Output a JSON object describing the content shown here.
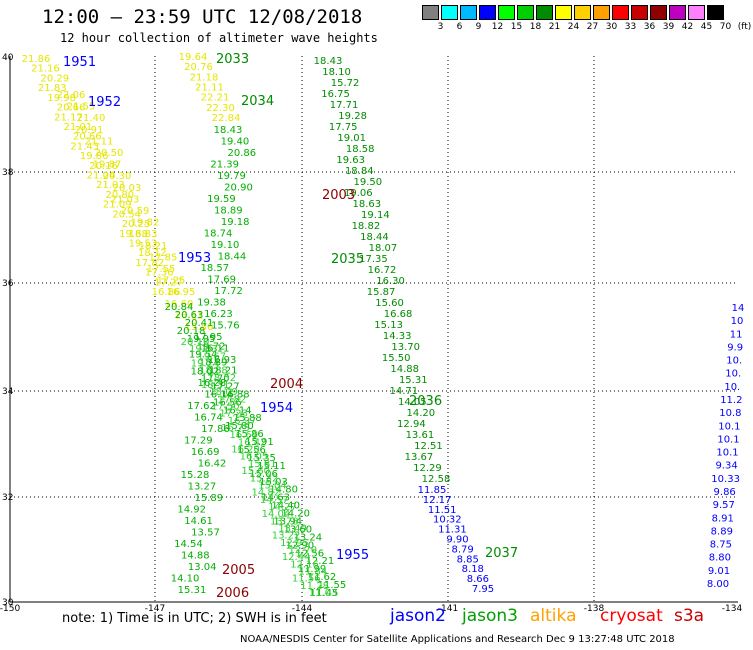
{
  "title": "12:00 – 23:59 UTC 12/08/2018",
  "subtitle": "12 hour collection of altimeter wave heights",
  "scale": {
    "labels": [
      "3",
      "6",
      "9",
      "12",
      "15",
      "18",
      "21",
      "24",
      "27",
      "30",
      "33",
      "36",
      "39",
      "42",
      "45",
      "70",
      "(ft)"
    ],
    "colors": [
      "#808080",
      "#00ffff",
      "#00b8ff",
      "#0000ff",
      "#00ff00",
      "#00d000",
      "#008c00",
      "#ffff00",
      "#ffd000",
      "#ffa000",
      "#ff0000",
      "#c80000",
      "#900000",
      "#c000c0",
      "#ff80ff",
      "#000000"
    ]
  },
  "axes": {
    "lat_labels": [
      "40",
      "38",
      "36",
      "34",
      "32",
      "30"
    ],
    "lon_labels": [
      "-150",
      "-147",
      "-144",
      "-141",
      "-138",
      "-134"
    ]
  },
  "tracks": [
    {
      "id": "1951",
      "color": "#0000ff",
      "values": [
        "21.86",
        "21.16",
        "20.29",
        "21.83",
        "19.98",
        "20.66",
        "21.17",
        "21.01",
        "20.66",
        "21.43",
        "19.86",
        "20.16",
        "21.04",
        "21.03",
        "20.80",
        "21.09",
        "20.54",
        "20.25",
        "19.68",
        "19.53",
        "18.12",
        "17.82",
        "17.36",
        "17.27",
        "16.86"
      ]
    },
    {
      "id": "1952",
      "color": "#0000ff",
      "values": [
        "22.06",
        "21.55",
        "21.40",
        "20.91",
        "21.11",
        "20.50",
        "19.87",
        "20.30",
        "20.03",
        "21.03",
        "20.59",
        "19.82",
        "18.83",
        "18.21",
        "17.85",
        "17.55",
        "17.25",
        "16.95",
        "16.60",
        "16.11",
        "15.86"
      ]
    },
    {
      "id": "1953",
      "color": "#0000ff",
      "values": [
        "20.84",
        "20.63",
        "20.41",
        "20.18",
        "19.95",
        "19.72",
        "19.54",
        "18.89",
        "18.21",
        "17.70",
        "17.27",
        "16.88",
        "16.56",
        "16.14",
        "15.88",
        "15.80",
        "15.86",
        "15.91",
        "15.56",
        "15.35",
        "15.11",
        "15.06",
        "15.03",
        "14.80",
        "14.63",
        "14.40",
        "14.20",
        "13.94",
        "13.60",
        "13.24",
        "12.90",
        "12.56",
        "12.21",
        "11.99",
        "11.62",
        "11.55",
        "11.45"
      ]
    },
    {
      "id": "1954",
      "color": "#0000ff",
      "values": [
        "20.10",
        "19.83",
        "19.67",
        "19.24",
        "18.88",
        "18.52",
        "18.31",
        "18.09",
        "17.82",
        "17.50",
        "17.23",
        "16.97",
        "16.75",
        "16.69",
        "16.42",
        "16.20",
        "16.05",
        "15.81",
        "15.60",
        "15.32",
        "15.04",
        "14.82",
        "14.57",
        "14.27",
        "14.04",
        "13.78",
        "13.49",
        "13.22",
        "12.95",
        "12.70",
        "12.44",
        "12.16",
        "11.84",
        "11.56",
        "11.28",
        "11.03"
      ]
    },
    {
      "id": "1955",
      "color": "#0000ff",
      "values": [
        "19.84",
        "19.61",
        "19.32",
        "19.05",
        "18.84"
      ]
    },
    {
      "id": "2033",
      "color": "#008c00",
      "values": [
        "19.64",
        "20.76",
        "21.18",
        "21.11",
        "22.21",
        "22.30",
        "22.84",
        "18.43",
        "19.40",
        "20.86",
        "21.39",
        "19.79",
        "20.90",
        "19.59",
        "18.89",
        "19.18",
        "18.74",
        "19.10",
        "18.44",
        "18.57",
        "17.69",
        "17.72",
        "19.38",
        "16.23",
        "15.76",
        "17.95",
        "16.11",
        "16.93",
        "18.02",
        "16.28",
        "16.14",
        "17.62",
        "16.74",
        "17.86",
        "17.29",
        "16.69",
        "16.42",
        "15.28",
        "13.27",
        "15.89",
        "14.92",
        "14.61",
        "13.57",
        "14.54",
        "14.88",
        "13.04",
        "14.10",
        "15.31"
      ]
    },
    {
      "id": "2034",
      "color": "#008c00",
      "values": [
        "18.43",
        "18.10",
        "15.72",
        "16.75",
        "17.71",
        "19.28",
        "17.75",
        "19.01",
        "18.58",
        "19.63",
        "18.84",
        "19.50",
        "19.06",
        "18.63",
        "19.14",
        "18.82",
        "18.44",
        "18.07",
        "17.35",
        "16.72",
        "16.30",
        "15.87",
        "15.60",
        "16.68",
        "15.13",
        "14.33",
        "13.70",
        "15.50",
        "14.88",
        "15.31",
        "14.71",
        "14.05",
        "14.20",
        "12.94",
        "13.61",
        "12.51",
        "13.67",
        "12.29",
        "12.58"
      ]
    },
    {
      "id": "2003",
      "color": "#8b0000",
      "values": []
    },
    {
      "id": "2035",
      "color": "#008c00",
      "values": []
    },
    {
      "id": "2036",
      "color": "#008c00",
      "values": [
        "11.85",
        "12.17",
        "11.51",
        "10.32",
        "11.31",
        "9.90",
        "8.79",
        "8.85",
        "8.18",
        "8.66",
        "7.95"
      ]
    },
    {
      "id": "2037",
      "color": "#008c00",
      "values": []
    },
    {
      "id": "2004",
      "color": "#8b0000",
      "values": []
    },
    {
      "id": "2005",
      "color": "#8b0000",
      "values": []
    },
    {
      "id": "2006",
      "color": "#8b0000",
      "values": []
    },
    {
      "id": "right",
      "color": "#0000ff",
      "values": [
        "14",
        "10",
        "11",
        "9.9",
        "10.",
        "10.",
        "10.",
        "11.2",
        "10.8",
        "10.1",
        "10.1",
        "10.1",
        "9.34",
        "10.33",
        "9.86",
        "9.57",
        "8.91",
        "8.89",
        "8.75",
        "8.80",
        "9.01",
        "8.00"
      ]
    }
  ],
  "legend": {
    "note": "note:  1) Time is in UTC;  2) SWH is in feet",
    "items": [
      {
        "label": "jason2",
        "color": "#0000ff"
      },
      {
        "label": "jason3",
        "color": "#00a000"
      },
      {
        "label": "altika",
        "color": "#ffa000"
      },
      {
        "label": "cryosat",
        "color": "#ff0000"
      },
      {
        "label": "s3a",
        "color": "#c80000"
      }
    ]
  },
  "credit": "NOAA/NESDIS Center for Satellite Applications and Research   Dec  9 13:27:48 UTC 2018"
}
